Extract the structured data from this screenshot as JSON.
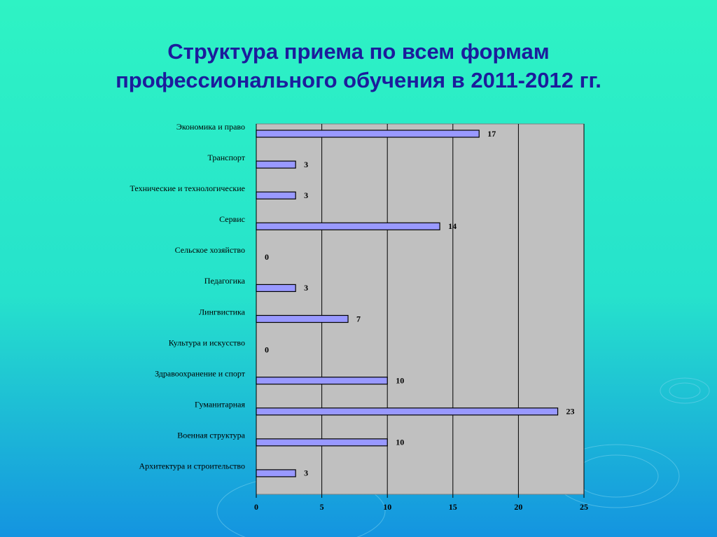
{
  "chart_data": {
    "type": "bar",
    "orientation": "horizontal",
    "title": [
      "Структура приема по всем формам",
      "профессионального обучения в 2011-2012 гг."
    ],
    "categories": [
      "Экономика и право",
      "Транспорт",
      "Технические и технологические",
      "Сервис",
      "Сельское хозяйство",
      "Педагогика",
      "Лингвистика",
      "Культура и искусство",
      "Здравоохранение и спорт",
      "Гуманитарная",
      "Военная структура",
      "Архитектура и строительство"
    ],
    "values": [
      17,
      3,
      3,
      14,
      0,
      3,
      7,
      0,
      10,
      23,
      10,
      3
    ],
    "color": "#9999ff",
    "xlim": [
      0,
      25
    ],
    "xticks": [
      0,
      5,
      10,
      15,
      20,
      25
    ],
    "grid": true
  }
}
